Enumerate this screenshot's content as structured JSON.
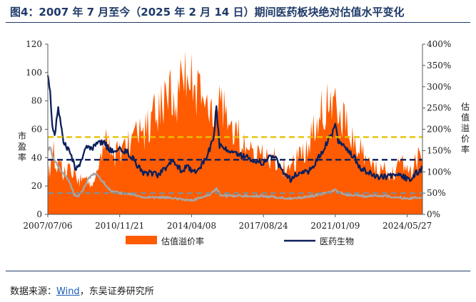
{
  "figure": {
    "title": "图4：2007 年 7 月至今（2025 年 2 月 14 日）期间医药板块绝对估值水平变化",
    "source_prefix": "数据来源：",
    "source_link": "Wind",
    "source_suffix": "，东吴证券研究所"
  },
  "chart_data": {
    "type": "line",
    "x_start": "2007/07/06",
    "x_end": "2025/02/14",
    "x_tick_labels": [
      "2007/07/06",
      "2010/11/21",
      "2014/04/08",
      "2017/08/24",
      "2021/01/09",
      "2024/05/27"
    ],
    "left_axis": {
      "label": "市盈率",
      "ylim": [
        0,
        120
      ],
      "ticks": [
        0,
        20,
        40,
        60,
        80,
        100,
        120
      ]
    },
    "right_axis": {
      "label": "估值溢价率",
      "ylim": [
        0,
        4
      ],
      "ticks": [
        "0%",
        "50%",
        "100%",
        "150%",
        "200%",
        "250%",
        "300%",
        "350%",
        "400%"
      ]
    },
    "colors": {
      "premium": "#ff5b00",
      "pe": "#0c1f5c",
      "gray": "#a6a6a6",
      "yellow_dash": "#e6c200",
      "navy_dash": "#0c1f5c",
      "gray_dash": "#8c8c8c"
    },
    "series": [
      {
        "name": "估值溢价率",
        "axis": "right",
        "style": "area",
        "x": [
          "2007-07-06",
          "2007-09-01",
          "2007-10-15",
          "2008-01-01",
          "2008-04-01",
          "2008-07-01",
          "2008-10-01",
          "2009-01-01",
          "2009-04-01",
          "2009-07-01",
          "2009-10-01",
          "2010-01-01",
          "2010-04-01",
          "2010-07-01",
          "2010-11-21",
          "2011-04-01",
          "2011-09-01",
          "2012-01-01",
          "2012-06-01",
          "2013-01-01",
          "2013-05-01",
          "2013-08-01",
          "2013-12-01",
          "2014-04-08",
          "2014-09-01",
          "2015-01-01",
          "2015-06-01",
          "2015-10-01",
          "2016-03-01",
          "2016-08-01",
          "2017-01-01",
          "2017-08-24",
          "2018-03-01",
          "2018-09-01",
          "2019-03-01",
          "2019-09-01",
          "2020-03-01",
          "2020-08-01",
          "2021-01-09",
          "2021-04-01",
          "2021-09-01",
          "2022-03-01",
          "2022-09-01",
          "2023-03-01",
          "2023-09-01",
          "2024-02-01",
          "2024-05-27",
          "2024-09-01",
          "2024-12-01",
          "2025-02-14"
        ],
        "values": [
          0.9,
          1.3,
          1.6,
          1.2,
          1.1,
          1.05,
          1.0,
          0.85,
          0.9,
          0.75,
          0.95,
          1.4,
          1.8,
          1.45,
          1.6,
          1.75,
          1.9,
          2.0,
          2.4,
          2.7,
          3.2,
          2.9,
          3.5,
          3.3,
          3.0,
          2.9,
          2.6,
          2.7,
          2.3,
          1.9,
          1.6,
          1.4,
          1.35,
          1.15,
          1.3,
          1.6,
          2.3,
          2.8,
          3.2,
          2.6,
          2.0,
          1.6,
          1.2,
          1.1,
          1.0,
          1.25,
          1.1,
          1.15,
          1.45,
          1.35
        ]
      },
      {
        "name": "医药生物",
        "axis": "left",
        "style": "line",
        "x": [
          "2007-07-06",
          "2007-08-15",
          "2007-09-20",
          "2007-11-01",
          "2008-01-01",
          "2008-04-01",
          "2008-07-01",
          "2008-11-01",
          "2009-02-01",
          "2009-05-01",
          "2009-08-01",
          "2009-11-01",
          "2010-03-01",
          "2010-07-01",
          "2010-11-21",
          "2011-04-01",
          "2011-08-01",
          "2011-12-01",
          "2012-04-01",
          "2012-09-01",
          "2013-01-01",
          "2013-06-01",
          "2013-10-01",
          "2014-02-01",
          "2014-06-01",
          "2014-10-01",
          "2015-02-01",
          "2015-04-15",
          "2015-06-10",
          "2015-08-01",
          "2015-12-01",
          "2016-04-01",
          "2016-09-01",
          "2017-02-01",
          "2017-08-24",
          "2018-02-01",
          "2018-07-01",
          "2018-12-01",
          "2019-05-01",
          "2019-10-01",
          "2020-03-01",
          "2020-07-01",
          "2020-12-01",
          "2021-01-09",
          "2021-03-01",
          "2021-07-01",
          "2021-12-01",
          "2022-04-01",
          "2022-10-01",
          "2023-03-01",
          "2023-09-01",
          "2024-02-01",
          "2024-05-27",
          "2024-09-01",
          "2024-10-15",
          "2024-12-01",
          "2025-02-14"
        ],
        "values": [
          98,
          88,
          62,
          55,
          75,
          52,
          45,
          32,
          38,
          48,
          45,
          52,
          50,
          44,
          46,
          44,
          38,
          30,
          29,
          28,
          32,
          38,
          31,
          33,
          30,
          35,
          45,
          52,
          75,
          48,
          45,
          43,
          41,
          39,
          36,
          42,
          32,
          25,
          29,
          30,
          38,
          47,
          58,
          62,
          52,
          48,
          40,
          32,
          28,
          26,
          27,
          28,
          25,
          24,
          30,
          29,
          33
        ]
      },
      {
        "name": "",
        "axis": "left",
        "style": "line",
        "x": [
          "2007-07-06",
          "2007-08-15",
          "2007-10-01",
          "2007-12-01",
          "2008-03-01",
          "2008-07-01",
          "2008-10-01",
          "2008-12-15",
          "2009-03-01",
          "2009-06-01",
          "2009-09-01",
          "2009-11-01",
          "2010-03-01",
          "2010-07-01",
          "2010-11-21",
          "2011-06-01",
          "2012-01-01",
          "2013-01-01",
          "2014-01-01",
          "2014-04-08",
          "2015-01-01",
          "2015-06-10",
          "2015-09-01",
          "2016-06-01",
          "2017-08-24",
          "2018-06-01",
          "2019-01-01",
          "2020-01-01",
          "2020-07-01",
          "2021-01-09",
          "2021-07-01",
          "2022-04-01",
          "2023-03-01",
          "2024-01-01",
          "2024-05-27",
          "2024-10-15",
          "2025-02-14"
        ],
        "values": [
          45,
          48,
          40,
          36,
          30,
          24,
          14,
          13,
          17,
          25,
          29,
          28,
          22,
          16,
          15,
          14,
          12,
          12,
          10,
          10,
          13,
          18,
          13,
          13,
          13,
          12,
          11,
          13,
          15,
          17,
          14,
          13,
          13,
          12,
          11,
          12,
          12
        ]
      }
    ],
    "reference_lines": [
      {
        "axis": "left",
        "value": 54.5,
        "color": "yellow_dash"
      },
      {
        "axis": "left",
        "value": 38.5,
        "color": "navy_dash"
      },
      {
        "axis": "left",
        "value": 15,
        "color": "gray_dash"
      }
    ],
    "legend_placement": "bottom",
    "grid": false
  }
}
